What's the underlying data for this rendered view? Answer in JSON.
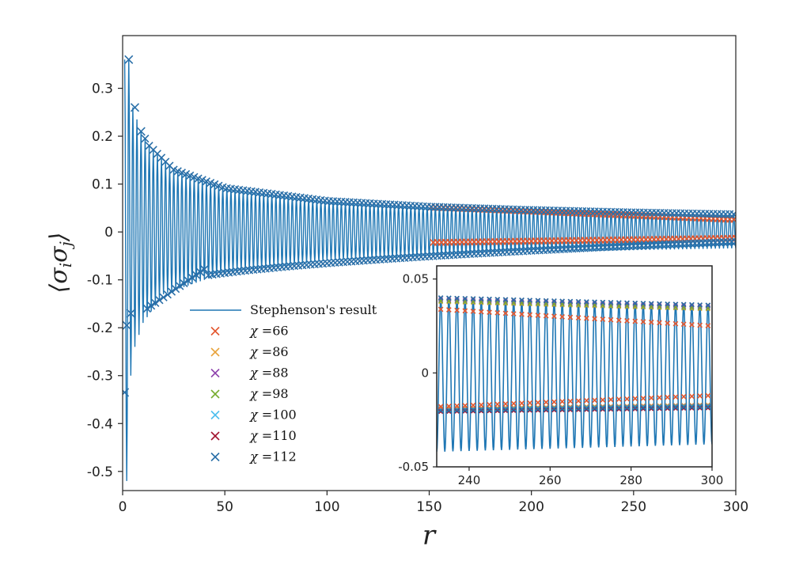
{
  "chart_data": [
    {
      "type": "line",
      "title": "",
      "xlabel": "r",
      "ylabel": "⟨σiσj⟩",
      "ylabel_parts": {
        "open": "⟨",
        "s1": "σ",
        "sub1": "i",
        "s2": "σ",
        "sub2": "j",
        "close": "⟩"
      },
      "xlim": [
        0,
        300
      ],
      "ylim": [
        -0.54,
        0.41
      ],
      "xticks": [
        0,
        50,
        100,
        150,
        200,
        250,
        300
      ],
      "xtick_labels": [
        "0",
        "50",
        "100",
        "150",
        "200",
        "250",
        "300"
      ],
      "yticks": [
        0.3,
        0.2,
        0.1,
        0,
        -0.1,
        -0.2,
        -0.3,
        -0.4,
        -0.5
      ],
      "ytick_labels": [
        "0.3",
        "0.2",
        "0.1",
        "0",
        "-0.1",
        "-0.2",
        "-0.3",
        "-0.4",
        "-0.5"
      ],
      "grid": false,
      "legend_position": "lower-center",
      "series": [
        {
          "name": "Stephenson's result",
          "style": "line",
          "color": "#1f77b4",
          "description": "oscillating envelope, odd r positive, even r negative",
          "envelope_even_r": [
            [
              2,
              -0.52
            ],
            [
              4,
              -0.3
            ],
            [
              6,
              -0.24
            ],
            [
              10,
              -0.19
            ],
            [
              20,
              -0.13
            ],
            [
              50,
              -0.085
            ],
            [
              100,
              -0.06
            ],
            [
              150,
              -0.05
            ],
            [
              200,
              -0.042
            ],
            [
              250,
              -0.038
            ],
            [
              300,
              -0.034
            ]
          ],
          "envelope_odd_r": [
            [
              3,
              0.36
            ],
            [
              5,
              0.26
            ],
            [
              9,
              0.21
            ],
            [
              13,
              0.18
            ],
            [
              25,
              0.13
            ],
            [
              50,
              0.092
            ],
            [
              100,
              0.065
            ],
            [
              150,
              0.053
            ],
            [
              200,
              0.046
            ],
            [
              250,
              0.041
            ],
            [
              300,
              0.037
            ]
          ]
        },
        {
          "name": "χ =66",
          "label_chi": "χ",
          "label_value": " =66",
          "style": "marker-x",
          "color": "#e4572e"
        },
        {
          "name": "χ =86",
          "label_chi": "χ",
          "label_value": " =86",
          "style": "marker-x",
          "color": "#e8a33d"
        },
        {
          "name": "χ =88",
          "label_chi": "χ",
          "label_value": " =88",
          "style": "marker-x",
          "color": "#8e44ad"
        },
        {
          "name": "χ =98",
          "label_chi": "χ",
          "label_value": " =98",
          "style": "marker-x",
          "color": "#77ac30"
        },
        {
          "name": "χ =100",
          "label_chi": "χ",
          "label_value": " =100",
          "style": "marker-x",
          "color": "#4dbeee"
        },
        {
          "name": "χ =110",
          "label_chi": "χ",
          "label_value": " =110",
          "style": "marker-x",
          "color": "#a2142f"
        },
        {
          "name": "χ =112",
          "label_chi": "χ",
          "label_value": " =112",
          "style": "marker-x",
          "color": "#2a6fa8"
        }
      ],
      "marker_points_chi112": [
        [
          1,
          -0.335
        ],
        [
          2,
          -0.195
        ],
        [
          3,
          0.36
        ],
        [
          4,
          -0.17
        ],
        [
          6,
          0.26
        ],
        [
          9,
          0.21
        ]
      ],
      "chi66_upper_drift": {
        "r": [
          150,
          300
        ],
        "value": [
          0.052,
          0.026
        ]
      },
      "chi66_lower_drift": {
        "r": [
          150,
          300
        ],
        "value": [
          -0.022,
          -0.013
        ]
      }
    },
    {
      "type": "line",
      "title": "inset",
      "xlabel": "",
      "ylabel": "",
      "xlim": [
        232,
        300
      ],
      "ylim": [
        -0.05,
        0.057
      ],
      "xticks": [
        240,
        260,
        280,
        300
      ],
      "xtick_labels": [
        "240",
        "260",
        "280",
        "300"
      ],
      "yticks": [
        0.05,
        0,
        -0.05
      ],
      "ytick_labels": [
        "0.05",
        "0",
        "-0.05"
      ],
      "grid": false,
      "series_summary": {
        "stephenson_upper": [
          [
            232,
            0.04
          ],
          [
            300,
            0.036
          ]
        ],
        "stephenson_lower": [
          [
            232,
            -0.042
          ],
          [
            300,
            -0.038
          ]
        ],
        "chi112_upper": [
          [
            232,
            0.04
          ],
          [
            300,
            0.036
          ]
        ],
        "chi112_lower": [
          [
            232,
            -0.02
          ],
          [
            300,
            -0.018
          ]
        ],
        "chi66_upper": [
          [
            232,
            0.034
          ],
          [
            300,
            0.025
          ]
        ],
        "chi66_lower": [
          [
            232,
            -0.018
          ],
          [
            300,
            -0.012
          ]
        ]
      }
    }
  ]
}
